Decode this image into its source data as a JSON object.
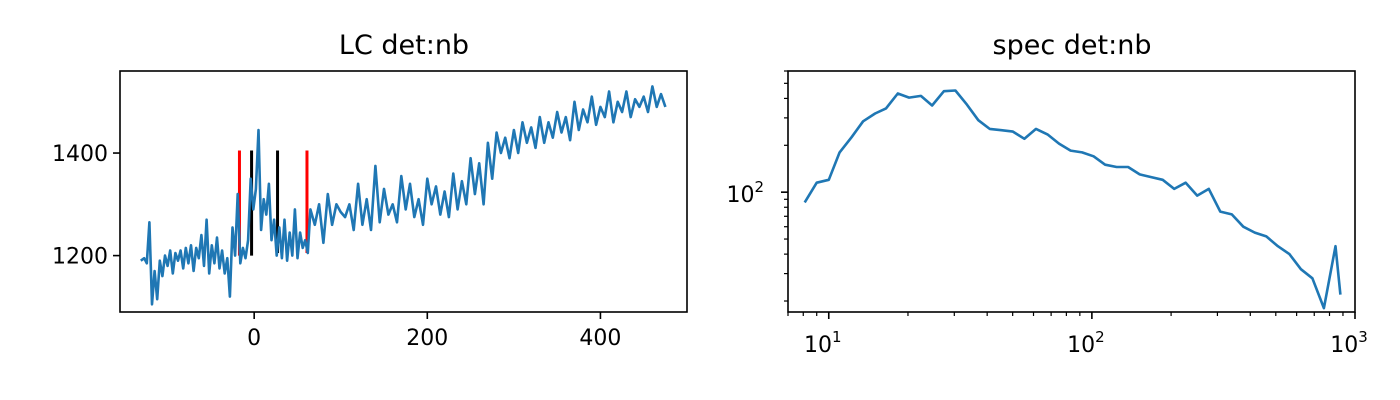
{
  "chart_data": [
    {
      "type": "line",
      "title": "LC det:nb",
      "xlabel": "",
      "ylabel": "",
      "xlim": [
        -155,
        500
      ],
      "ylim": [
        1090,
        1560
      ],
      "xticks": [
        0,
        200,
        400
      ],
      "xtick_labels": [
        "0",
        "200",
        "400"
      ],
      "yticks": [
        1200,
        1400
      ],
      "ytick_labels": [
        "1200",
        "1400"
      ],
      "grid": false,
      "color": "#1f77b4",
      "vlines": [
        {
          "x": -17,
          "ymin": 1200,
          "ymax": 1405,
          "color": "#ff0000"
        },
        {
          "x": -3,
          "ymin": 1200,
          "ymax": 1405,
          "color": "#000000"
        },
        {
          "x": 27,
          "ymin": 1205,
          "ymax": 1405,
          "color": "#000000"
        },
        {
          "x": 61,
          "ymin": 1205,
          "ymax": 1405,
          "color": "#ff0000"
        }
      ],
      "series": [
        {
          "x": [
            -131,
            -127,
            -124,
            -121,
            -118,
            -115,
            -112,
            -109,
            -106,
            -103,
            -100,
            -97,
            -94,
            -91,
            -88,
            -85,
            -82,
            -79,
            -76,
            -73,
            -70,
            -67,
            -64,
            -61,
            -58,
            -55,
            -52,
            -49,
            -46,
            -43,
            -40,
            -37,
            -34,
            -31,
            -28,
            -25,
            -22,
            -19,
            -16,
            -13,
            -10,
            -7,
            -4,
            -1,
            2,
            5,
            8,
            11,
            14,
            17,
            20,
            23,
            26,
            29,
            32,
            35,
            38,
            41,
            44,
            47,
            50,
            53,
            56,
            59,
            62,
            65,
            70,
            75,
            80,
            85,
            90,
            95,
            100,
            105,
            110,
            115,
            120,
            125,
            130,
            135,
            140,
            145,
            150,
            155,
            160,
            165,
            170,
            175,
            180,
            185,
            190,
            195,
            200,
            205,
            210,
            215,
            220,
            225,
            230,
            235,
            240,
            245,
            250,
            255,
            260,
            265,
            270,
            275,
            280,
            285,
            290,
            295,
            300,
            305,
            310,
            315,
            320,
            325,
            330,
            335,
            340,
            345,
            350,
            355,
            360,
            365,
            370,
            375,
            380,
            385,
            390,
            395,
            400,
            405,
            410,
            415,
            420,
            425,
            430,
            435,
            440,
            445,
            450,
            455,
            460,
            465,
            470,
            475
          ],
          "y": [
            1190,
            1195,
            1185,
            1265,
            1105,
            1170,
            1115,
            1190,
            1160,
            1200,
            1180,
            1210,
            1165,
            1205,
            1190,
            1210,
            1175,
            1215,
            1185,
            1220,
            1170,
            1215,
            1195,
            1240,
            1180,
            1270,
            1165,
            1220,
            1185,
            1235,
            1175,
            1210,
            1165,
            1195,
            1120,
            1255,
            1200,
            1320,
            1185,
            1215,
            1195,
            1230,
            1350,
            1290,
            1330,
            1445,
            1250,
            1310,
            1280,
            1340,
            1230,
            1270,
            1200,
            1255,
            1195,
            1270,
            1190,
            1245,
            1200,
            1290,
            1195,
            1245,
            1215,
            1230,
            1205,
            1290,
            1260,
            1300,
            1225,
            1320,
            1260,
            1300,
            1285,
            1275,
            1300,
            1250,
            1340,
            1260,
            1310,
            1250,
            1375,
            1265,
            1330,
            1280,
            1300,
            1265,
            1355,
            1290,
            1340,
            1275,
            1310,
            1260,
            1350,
            1300,
            1335,
            1280,
            1325,
            1275,
            1360,
            1290,
            1345,
            1300,
            1390,
            1320,
            1380,
            1300,
            1420,
            1350,
            1440,
            1400,
            1430,
            1390,
            1445,
            1400,
            1460,
            1420,
            1450,
            1410,
            1470,
            1420,
            1460,
            1430,
            1480,
            1440,
            1470,
            1425,
            1500,
            1445,
            1485,
            1460,
            1510,
            1455,
            1490,
            1470,
            1520,
            1460,
            1500,
            1480,
            1520,
            1470,
            1505,
            1490,
            1510,
            1480,
            1530,
            1490,
            1515,
            1490
          ]
        }
      ]
    },
    {
      "type": "line",
      "title": "spec det:nb",
      "xlabel": "",
      "ylabel": "",
      "xscale": "log",
      "yscale": "log",
      "xlim": [
        7,
        1000
      ],
      "ylim": [
        17,
        600
      ],
      "xticks": [
        10,
        100,
        1000
      ],
      "xtick_labels": [
        {
          "base": "10",
          "exp": "1"
        },
        {
          "base": "10",
          "exp": "2"
        },
        {
          "base": "10",
          "exp": "3"
        }
      ],
      "yticks": [
        100
      ],
      "ytick_labels": [
        {
          "base": "10",
          "exp": "2"
        }
      ],
      "grid": false,
      "color": "#1f77b4",
      "series": [
        {
          "x": [
            8.1,
            9.0,
            10.0,
            11.0,
            12.2,
            13.5,
            15.0,
            16.5,
            18.3,
            20.2,
            22.4,
            24.7,
            27.4,
            30.3,
            33.5,
            37.0,
            40.9,
            45.3,
            50.1,
            55.4,
            61.3,
            67.8,
            75.0,
            83.0,
            91.8,
            101.5,
            112.3,
            124.2,
            137.3,
            151.9,
            168.0,
            185.8,
            205.5,
            227.3,
            251.4,
            278.1,
            307.6,
            340.2,
            376.3,
            416.2,
            460.3,
            509.1,
            563.1,
            622.8,
            688.9,
            762.0,
            842.8,
            880.0
          ],
          "y": [
            86,
            115,
            120,
            180,
            225,
            285,
            320,
            345,
            430,
            405,
            415,
            360,
            445,
            450,
            365,
            290,
            255,
            250,
            245,
            220,
            255,
            235,
            205,
            185,
            180,
            170,
            150,
            145,
            145,
            130,
            125,
            120,
            105,
            115,
            95,
            105,
            75,
            72,
            60,
            55,
            52,
            45,
            40,
            32,
            28,
            18,
            45,
            22
          ]
        }
      ]
    }
  ]
}
